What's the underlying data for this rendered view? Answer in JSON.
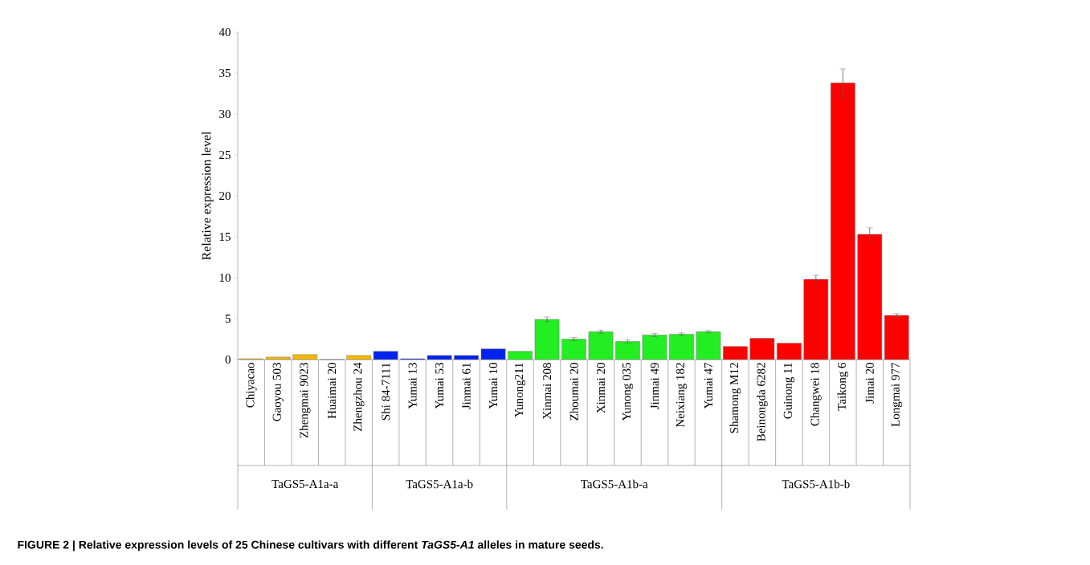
{
  "chart_data": {
    "type": "bar",
    "ylabel": "Relative expression level",
    "categories": [
      "Chiyacao",
      "Gaoyou 503",
      "Zhengmai 9023",
      "Huaimai 20",
      "Zhengzhou 24",
      "Shi 84-7111",
      "Yumai 13",
      "Yumai 53",
      "Jinmai 61",
      "Yumai 10",
      "Yunong211",
      "Xinmai 208",
      "Zhoumai 20",
      "Xinmai 20",
      "Yunong 035",
      "Jinmai 49",
      "Neixiang 182",
      "Yumai 47",
      "Shamong M12",
      "Beinongda 6282",
      "Guinong 11",
      "Changwei 18",
      "Taikong 6",
      "Jimai 20",
      "Longmai 977"
    ],
    "values": [
      0.1,
      0.3,
      0.6,
      0,
      0.5,
      1.0,
      0.1,
      0.5,
      0.5,
      1.3,
      1.0,
      4.9,
      2.5,
      3.4,
      2.2,
      3.0,
      3.1,
      3.4,
      1.6,
      2.6,
      2.0,
      9.8,
      33.8,
      15.3,
      5.4
    ],
    "errors": [
      null,
      null,
      null,
      null,
      null,
      null,
      null,
      null,
      null,
      null,
      null,
      0.3,
      0.2,
      0.2,
      0.2,
      0.2,
      0.15,
      0.15,
      null,
      null,
      null,
      0.5,
      1.7,
      0.8,
      0.2
    ],
    "colors": [
      "#f5b800",
      "#f5b800",
      "#f5b800",
      "#f5b800",
      "#f5b800",
      "#0022ee",
      "#0022ee",
      "#0022ee",
      "#0022ee",
      "#0022ee",
      "#22ee22",
      "#22ee22",
      "#22ee22",
      "#22ee22",
      "#22ee22",
      "#22ee22",
      "#22ee22",
      "#22ee22",
      "#ff0000",
      "#ff0000",
      "#ff0000",
      "#ff0000",
      "#ff0000",
      "#ff0000",
      "#ff0000"
    ],
    "ylim": [
      0,
      40
    ],
    "yticks": [
      0,
      5,
      10,
      15,
      20,
      25,
      30,
      35,
      40
    ],
    "annotations": [
      "TaGS5-A1a-a",
      "TaGS5-A1a-b",
      "TaGS5-A1b-a",
      "TaGS5-A1b-b",
      "FIGURE 2 | Relative expression levels of 25 Chinese cultivars with different *TaGS5-A1* alleles in mature seeds."
    ]
  }
}
